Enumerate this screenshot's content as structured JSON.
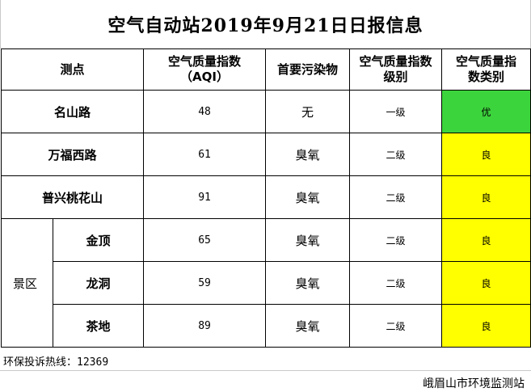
{
  "title": "空气自动站2019年9月21日日报信息",
  "headers": {
    "site": "测点",
    "aqi_line1": "空气质量指数",
    "aqi_line2": "（AQI）",
    "pollutant": "首要污染物",
    "level_line1": "空气质量指数",
    "level_line2": "级别",
    "category_line1": "空气质量指",
    "category_line2": "数类别"
  },
  "rows": [
    {
      "name": "名山路",
      "aqi": "48",
      "pollutant": "无",
      "level": "一级",
      "category": "优",
      "color": "#3cd43c"
    },
    {
      "name": "万福西路",
      "aqi": "61",
      "pollutant": "臭氧",
      "level": "二级",
      "category": "良",
      "color": "#ffff00"
    },
    {
      "name": "普兴桃花山",
      "aqi": "91",
      "pollutant": "臭氧",
      "level": "二级",
      "category": "良",
      "color": "#ffff00"
    }
  ],
  "scenic": {
    "group_label": "景区",
    "rows": [
      {
        "name": "金顶",
        "aqi": "65",
        "pollutant": "臭氧",
        "level": "二级",
        "category": "良",
        "color": "#ffff00"
      },
      {
        "name": "龙洞",
        "aqi": "59",
        "pollutant": "臭氧",
        "level": "二级",
        "category": "良",
        "color": "#ffff00"
      },
      {
        "name": "茶地",
        "aqi": "89",
        "pollutant": "臭氧",
        "level": "二级",
        "category": "良",
        "color": "#ffff00"
      }
    ]
  },
  "footer": {
    "hotline_label": "环保投诉热线：",
    "hotline_number": "12369",
    "organization": "峨眉山市环境监测站"
  }
}
